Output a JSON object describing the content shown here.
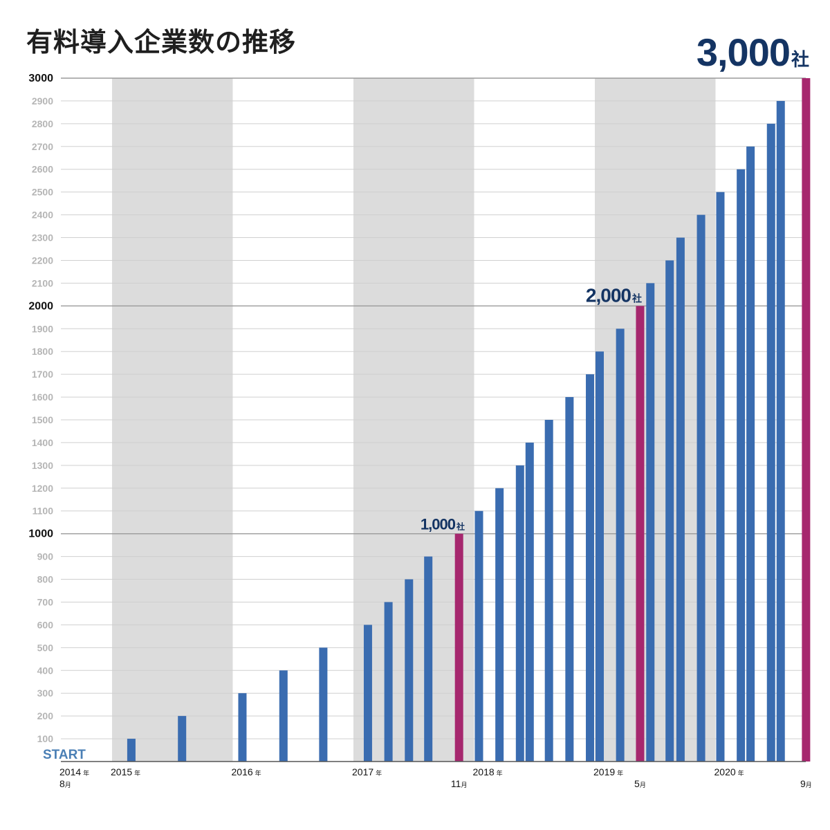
{
  "title": "有料導入企業数の推移",
  "chart_data": {
    "type": "bar",
    "title": "有料導入企業数の推移",
    "ylim": [
      0,
      3000
    ],
    "yticks": [
      100,
      200,
      300,
      400,
      500,
      600,
      700,
      800,
      900,
      1000,
      1100,
      1200,
      1300,
      1400,
      1500,
      1600,
      1700,
      1800,
      1900,
      2000,
      2100,
      2200,
      2300,
      2400,
      2500,
      2600,
      2700,
      2800,
      2900,
      3000
    ],
    "major_ticks": [
      1000,
      2000,
      3000
    ],
    "start_label": "START",
    "x_start": 2014.583,
    "x_end": 2020.75,
    "shaded_years": [
      2015,
      2017,
      2019
    ],
    "year_ticks": [
      {
        "year": 2014,
        "label": "2014",
        "unit": "年",
        "month": "8",
        "month_unit": "月"
      },
      {
        "year": 2015,
        "label": "2015",
        "unit": "年"
      },
      {
        "year": 2016,
        "label": "2016",
        "unit": "年"
      },
      {
        "year": 2017,
        "label": "2017",
        "unit": "年"
      },
      {
        "year": 2018,
        "label": "2018",
        "unit": "年"
      },
      {
        "year": 2019,
        "label": "2019",
        "unit": "年"
      },
      {
        "year": 2020,
        "label": "2020",
        "unit": "年"
      }
    ],
    "month_labels": [
      {
        "x": 2017.875,
        "month": "11",
        "unit": "月"
      },
      {
        "x": 2019.375,
        "month": "5",
        "unit": "月"
      },
      {
        "x": 2020.75,
        "month": "9",
        "unit": "月"
      }
    ],
    "bars": [
      {
        "x": 2015.16,
        "value": 100
      },
      {
        "x": 2015.58,
        "value": 200
      },
      {
        "x": 2016.08,
        "value": 300
      },
      {
        "x": 2016.42,
        "value": 400
      },
      {
        "x": 2016.75,
        "value": 500
      },
      {
        "x": 2017.12,
        "value": 600
      },
      {
        "x": 2017.29,
        "value": 700
      },
      {
        "x": 2017.46,
        "value": 800
      },
      {
        "x": 2017.62,
        "value": 900
      },
      {
        "x": 2017.875,
        "value": 1000,
        "milestone": true
      },
      {
        "x": 2018.04,
        "value": 1100
      },
      {
        "x": 2018.21,
        "value": 1200
      },
      {
        "x": 2018.38,
        "value": 1300
      },
      {
        "x": 2018.46,
        "value": 1400
      },
      {
        "x": 2018.62,
        "value": 1500
      },
      {
        "x": 2018.79,
        "value": 1600
      },
      {
        "x": 2018.96,
        "value": 1700
      },
      {
        "x": 2019.04,
        "value": 1800
      },
      {
        "x": 2019.21,
        "value": 1900
      },
      {
        "x": 2019.375,
        "value": 2000,
        "milestone": true
      },
      {
        "x": 2019.46,
        "value": 2100
      },
      {
        "x": 2019.62,
        "value": 2200
      },
      {
        "x": 2019.71,
        "value": 2300
      },
      {
        "x": 2019.88,
        "value": 2400
      },
      {
        "x": 2020.04,
        "value": 2500
      },
      {
        "x": 2020.21,
        "value": 2600
      },
      {
        "x": 2020.29,
        "value": 2700
      },
      {
        "x": 2020.46,
        "value": 2800
      },
      {
        "x": 2020.54,
        "value": 2900
      },
      {
        "x": 2020.75,
        "value": 3000,
        "milestone": true
      }
    ],
    "milestones": [
      {
        "value": 1000,
        "number": "1,000",
        "unit": "社"
      },
      {
        "value": 2000,
        "number": "2,000",
        "unit": "社"
      },
      {
        "value": 3000,
        "number": "3,000",
        "unit": "社"
      }
    ],
    "colors": {
      "bar": "#3a6cb0",
      "milestone_bar": "#a6276e",
      "shade": "#dcdcdc",
      "grid": "#cfcfcf",
      "axis": "#555555",
      "milestone_text": "#143463",
      "start": "#4a7fb5"
    }
  }
}
